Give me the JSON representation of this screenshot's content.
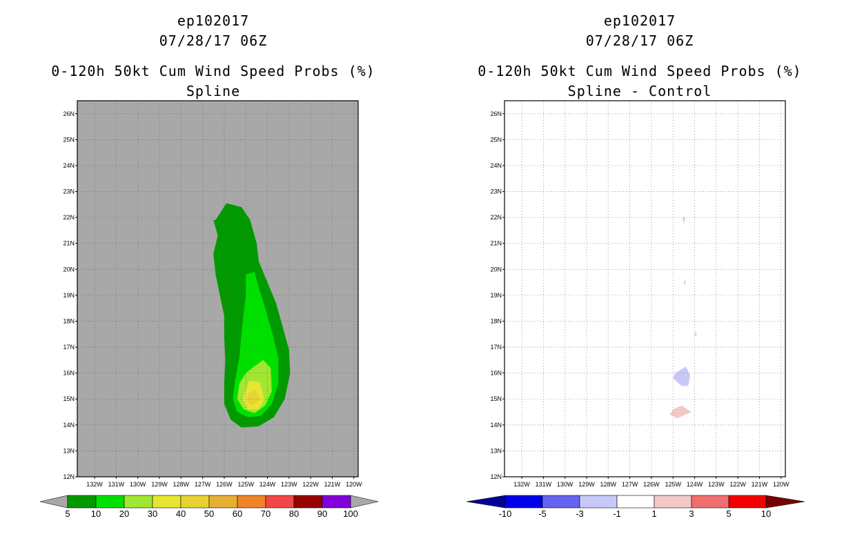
{
  "panels": [
    {
      "id": "left",
      "title_line1": "ep102017",
      "title_line2": "07/28/17 06Z",
      "title_line3": "0-120h 50kt Cum Wind Speed Probs (%)",
      "title_line4": "Spline"
    },
    {
      "id": "right",
      "title_line1": "ep102017",
      "title_line2": "07/28/17 06Z",
      "title_line3": "0-120h 50kt Cum Wind Speed Probs (%)",
      "title_line4": "Spline - Control"
    }
  ],
  "chart_data": [
    {
      "type": "heatmap",
      "title": "0-120h 50kt Cum Wind Speed Probs (%) - Spline",
      "background_color": "#a8a8a8",
      "xlim": [
        -132.8,
        -119.8
      ],
      "ylim": [
        12,
        26.5
      ],
      "x_ticks": [
        -132,
        -131,
        -130,
        -129,
        -128,
        -127,
        -126,
        -125,
        -124,
        -123,
        -122,
        -121,
        -120
      ],
      "x_tick_labels": [
        "132W",
        "131W",
        "130W",
        "129W",
        "128W",
        "127W",
        "126W",
        "125W",
        "124W",
        "123W",
        "122W",
        "121W",
        "120W"
      ],
      "y_ticks": [
        12,
        13,
        14,
        15,
        16,
        17,
        18,
        19,
        20,
        21,
        22,
        23,
        24,
        25,
        26
      ],
      "y_tick_labels": [
        "12N",
        "13N",
        "14N",
        "15N",
        "16N",
        "17N",
        "18N",
        "19N",
        "20N",
        "21N",
        "22N",
        "23N",
        "24N",
        "25N",
        "26N"
      ],
      "contours": [
        {
          "level": 5,
          "color": "#009a00",
          "points": [
            [
              -126.4,
              21.9
            ],
            [
              -125.9,
              22.55
            ],
            [
              -125.2,
              22.4
            ],
            [
              -124.8,
              21.9
            ],
            [
              -124.5,
              21.0
            ],
            [
              -124.4,
              20.3
            ],
            [
              -124.0,
              19.5
            ],
            [
              -123.6,
              18.7
            ],
            [
              -123.3,
              17.8
            ],
            [
              -123.0,
              16.9
            ],
            [
              -122.95,
              16.0
            ],
            [
              -123.2,
              15.0
            ],
            [
              -123.7,
              14.3
            ],
            [
              -124.4,
              13.95
            ],
            [
              -125.2,
              13.9
            ],
            [
              -125.7,
              14.2
            ],
            [
              -126.0,
              14.8
            ],
            [
              -126.0,
              15.6
            ],
            [
              -125.95,
              16.5
            ],
            [
              -126.0,
              17.4
            ],
            [
              -126.0,
              18.2
            ],
            [
              -126.2,
              19.0
            ],
            [
              -126.4,
              19.8
            ],
            [
              -126.5,
              20.6
            ],
            [
              -126.3,
              21.3
            ],
            [
              -126.5,
              21.9
            ]
          ]
        },
        {
          "level": 10,
          "color": "#00e000",
          "points": [
            [
              -125.0,
              19.8
            ],
            [
              -124.6,
              19.9
            ],
            [
              -124.4,
              19.3
            ],
            [
              -124.1,
              18.5
            ],
            [
              -123.8,
              17.6
            ],
            [
              -123.5,
              16.6
            ],
            [
              -123.5,
              15.6
            ],
            [
              -123.8,
              14.8
            ],
            [
              -124.3,
              14.35
            ],
            [
              -124.9,
              14.3
            ],
            [
              -125.4,
              14.5
            ],
            [
              -125.6,
              15.0
            ],
            [
              -125.5,
              15.7
            ],
            [
              -125.3,
              16.6
            ],
            [
              -125.2,
              17.5
            ],
            [
              -125.1,
              18.3
            ],
            [
              -125.0,
              19.0
            ]
          ]
        },
        {
          "level": 20,
          "color": "#a0e632",
          "points": [
            [
              -124.7,
              16.2
            ],
            [
              -124.2,
              16.5
            ],
            [
              -123.85,
              16.2
            ],
            [
              -123.8,
              15.3
            ],
            [
              -124.1,
              14.75
            ],
            [
              -124.6,
              14.45
            ],
            [
              -125.1,
              14.6
            ],
            [
              -125.4,
              15.0
            ],
            [
              -125.3,
              15.6
            ],
            [
              -125.0,
              16.0
            ]
          ]
        },
        {
          "level": 30,
          "color": "#e6e632",
          "points": [
            [
              -124.85,
              15.7
            ],
            [
              -124.35,
              15.65
            ],
            [
              -124.15,
              15.0
            ],
            [
              -124.4,
              14.6
            ],
            [
              -124.9,
              14.6
            ],
            [
              -125.15,
              15.0
            ]
          ]
        },
        {
          "level": 40,
          "color": "#e6d232",
          "points": [
            [
              -124.9,
              15.2
            ],
            [
              -124.55,
              15.35
            ],
            [
              -124.35,
              14.95
            ],
            [
              -124.7,
              14.75
            ],
            [
              -124.95,
              14.9
            ]
          ]
        }
      ],
      "colorbar": {
        "labels": [
          "5",
          "10",
          "20",
          "30",
          "40",
          "50",
          "60",
          "70",
          "80",
          "90",
          "100"
        ],
        "colors": [
          "#009a00",
          "#00e000",
          "#a0e632",
          "#e6e632",
          "#e6d232",
          "#e6ae32",
          "#f08228",
          "#f04848",
          "#960000",
          "#8200dc"
        ],
        "under_color": "#a8a8a8",
        "over_color": "#a8a8a8"
      }
    },
    {
      "type": "heatmap",
      "title": "0-120h 50kt Cum Wind Speed Probs (%) - Spline - Control",
      "background_color": "#ffffff",
      "xlim": [
        -132.8,
        -119.8
      ],
      "ylim": [
        12,
        26.5
      ],
      "x_ticks": [
        -132,
        -131,
        -130,
        -129,
        -128,
        -127,
        -126,
        -125,
        -124,
        -123,
        -122,
        -121,
        -120
      ],
      "x_tick_labels": [
        "132W",
        "131W",
        "130W",
        "129W",
        "128W",
        "127W",
        "126W",
        "125W",
        "124W",
        "123W",
        "122W",
        "121W",
        "120W"
      ],
      "y_ticks": [
        12,
        13,
        14,
        15,
        16,
        17,
        18,
        19,
        20,
        21,
        22,
        23,
        24,
        25,
        26
      ],
      "y_tick_labels": [
        "12N",
        "13N",
        "14N",
        "15N",
        "16N",
        "17N",
        "18N",
        "19N",
        "20N",
        "21N",
        "22N",
        "23N",
        "24N",
        "25N",
        "26N"
      ],
      "contours": [
        {
          "level": 1,
          "color": "#f5c8c8",
          "points": [
            [
              -124.5,
              22.05
            ],
            [
              -124.43,
              21.95
            ],
            [
              -124.5,
              21.8
            ],
            [
              -124.57,
              21.95
            ]
          ]
        },
        {
          "level": 1,
          "color": "#f5c8c8",
          "points": [
            [
              -124.45,
              19.6
            ],
            [
              -124.4,
              19.5
            ],
            [
              -124.45,
              19.38
            ],
            [
              -124.5,
              19.5
            ]
          ]
        },
        {
          "level": -1,
          "color": "#c8c8f8",
          "points": [
            [
              -123.95,
              17.6
            ],
            [
              -123.9,
              17.5
            ],
            [
              -123.95,
              17.42
            ],
            [
              -124.0,
              17.5
            ]
          ]
        },
        {
          "level": -1,
          "color": "#c8c8f8",
          "points": [
            [
              -124.9,
              16.0
            ],
            [
              -124.4,
              16.25
            ],
            [
              -124.2,
              15.9
            ],
            [
              -124.3,
              15.5
            ],
            [
              -124.6,
              15.5
            ],
            [
              -125.0,
              15.8
            ]
          ]
        },
        {
          "level": 1,
          "color": "#f5c8c8",
          "points": [
            [
              -125.0,
              14.6
            ],
            [
              -124.6,
              14.75
            ],
            [
              -124.15,
              14.5
            ],
            [
              -124.8,
              14.25
            ],
            [
              -125.15,
              14.4
            ]
          ]
        }
      ],
      "colorbar": {
        "labels": [
          "-10",
          "-5",
          "-3",
          "-1",
          "1",
          "3",
          "5",
          "10"
        ],
        "colors": [
          "#0000e6",
          "#6464f0",
          "#c8c8f8",
          "#ffffff",
          "#f5c8c8",
          "#f06e6e",
          "#f00000"
        ],
        "under_color": "#000096",
        "over_color": "#780000"
      }
    }
  ]
}
